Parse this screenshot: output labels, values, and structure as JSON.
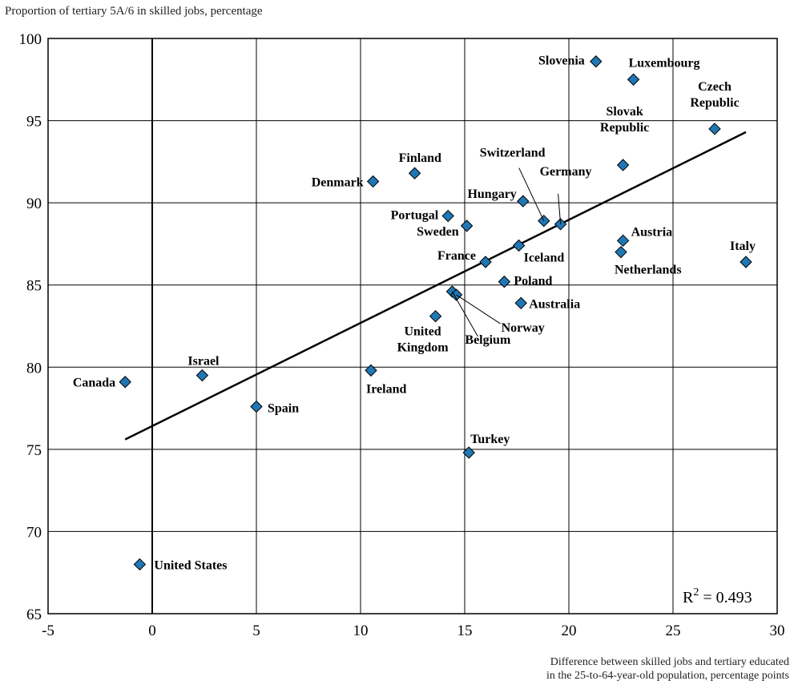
{
  "chart_data": {
    "type": "scatter",
    "title": "",
    "ylabel": "Proportion of tertiary 5A/6 in skilled jobs, percentage",
    "xlabel_lines": [
      "Difference between  skilled jobs and tertiary educated",
      "in the 25-to-64-year-old population, percentage points"
    ],
    "xlim": [
      -5,
      30
    ],
    "ylim": [
      65,
      100
    ],
    "x_ticks": [
      -5,
      0,
      5,
      10,
      15,
      20,
      25,
      30
    ],
    "y_ticks": [
      65,
      70,
      75,
      80,
      85,
      90,
      95,
      100
    ],
    "grid": true,
    "marker_color": "#1f77b4",
    "series": [
      {
        "points": [
          {
            "label": "Slovenia",
            "x": 21.3,
            "y": 98.6
          },
          {
            "label": "Luxembourg",
            "x": 23.1,
            "y": 97.5
          },
          {
            "label": "Czech Republic",
            "x": 27.0,
            "y": 94.5
          },
          {
            "label": "Slovak Republic",
            "x": 22.6,
            "y": 92.3
          },
          {
            "label": "Finland",
            "x": 12.6,
            "y": 91.8
          },
          {
            "label": "Denmark",
            "x": 10.6,
            "y": 91.3
          },
          {
            "label": "Hungary",
            "x": 17.8,
            "y": 90.1
          },
          {
            "label": "Portugal",
            "x": 14.2,
            "y": 89.2
          },
          {
            "label": "Switzerland",
            "x": 18.8,
            "y": 88.9
          },
          {
            "label": "Germany",
            "x": 19.6,
            "y": 88.7
          },
          {
            "label": "Sweden",
            "x": 15.1,
            "y": 88.6
          },
          {
            "label": "Austria",
            "x": 22.6,
            "y": 87.7
          },
          {
            "label": "Iceland",
            "x": 17.6,
            "y": 87.4
          },
          {
            "label": "Netherlands",
            "x": 22.5,
            "y": 87.0
          },
          {
            "label": "Italy",
            "x": 28.5,
            "y": 86.4
          },
          {
            "label": "France",
            "x": 16.0,
            "y": 86.4
          },
          {
            "label": "Poland",
            "x": 16.9,
            "y": 85.2
          },
          {
            "label": "Belgium",
            "x": 14.4,
            "y": 84.6
          },
          {
            "label": "Norway",
            "x": 14.6,
            "y": 84.4
          },
          {
            "label": "Australia",
            "x": 17.7,
            "y": 83.9
          },
          {
            "label": "United Kingdom",
            "x": 13.6,
            "y": 83.1
          },
          {
            "label": "Ireland",
            "x": 10.5,
            "y": 79.8
          },
          {
            "label": "Israel",
            "x": 2.4,
            "y": 79.5
          },
          {
            "label": "Canada",
            "x": -1.3,
            "y": 79.1
          },
          {
            "label": "Spain",
            "x": 5.0,
            "y": 77.6
          },
          {
            "label": "Turkey",
            "x": 15.2,
            "y": 74.8
          },
          {
            "label": "United States",
            "x": -0.6,
            "y": 68.0
          }
        ]
      }
    ],
    "trendline": {
      "x": [
        -1.3,
        28.5
      ],
      "y": [
        75.6,
        94.3
      ]
    },
    "annotation": {
      "text": "R",
      "sup": "2",
      "rest": " = 0.493"
    }
  }
}
